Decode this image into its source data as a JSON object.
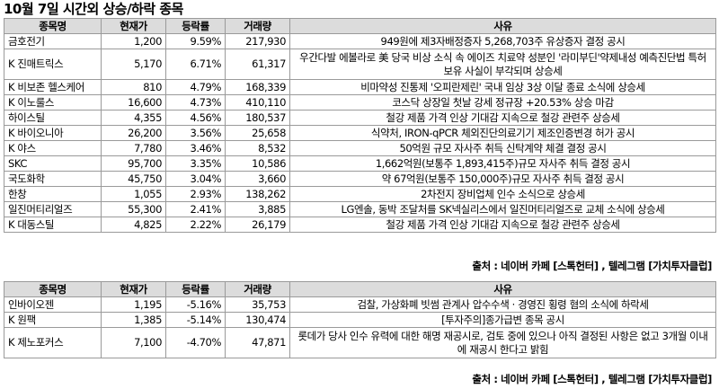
{
  "title": "10월 7일  시간외 상승/하락 종목",
  "headers": {
    "name": "종목명",
    "price": "현재가",
    "rate": "등락률",
    "volume": "거래량",
    "reason": "사유"
  },
  "rising": [
    {
      "name": "금호전기",
      "price": "1,200",
      "rate": "9.59%",
      "volume": "217,930",
      "reason": "949원에 제3자배정증자 5,268,703주 유상증자 결정 공시"
    },
    {
      "name": "K 진매트릭스",
      "price": "5,170",
      "rate": "6.71%",
      "volume": "61,317",
      "reason": "우간다발 에볼라로 美 당국 비상 소식 속 에이즈 치료약 성분인 '라미부딘'약제내성 예측진단법 특허 보유 사실이 부각되며 상승세"
    },
    {
      "name": "K 비보존 헬스케어",
      "price": "810",
      "rate": "4.79%",
      "volume": "168,339",
      "reason": "비마약성 진통제 '오피란제린' 국내 임상 3상 이달 종료 소식에 상승세"
    },
    {
      "name": "K 이노룰스",
      "price": "16,600",
      "rate": "4.73%",
      "volume": "410,110",
      "reason": "코스닥 상장일 첫날 강세 정규장 +20.53% 상승 마감"
    },
    {
      "name": "하이스틸",
      "price": "4,355",
      "rate": "4.56%",
      "volume": "180,537",
      "reason": "철강 제품 가격 인상 기대감 지속으로 철강 관련주 상승세"
    },
    {
      "name": "K 바이오니아",
      "price": "26,200",
      "rate": "3.56%",
      "volume": "25,658",
      "reason": "식약처, IRON-qPCR 체외진단의료기기 제조인증변경 허가 공시"
    },
    {
      "name": "K 야스",
      "price": "7,780",
      "rate": "3.46%",
      "volume": "8,532",
      "reason": "50억원 규모 자사주 취득 신탁계약 체결 결정 공시"
    },
    {
      "name": "SKC",
      "price": "95,700",
      "rate": "3.35%",
      "volume": "10,586",
      "reason": "1,662억원(보통주 1,893,415주)규모 자사주 취득 결정 공시"
    },
    {
      "name": "국도화학",
      "price": "45,750",
      "rate": "3.04%",
      "volume": "3,660",
      "reason": "약 67억원(보통주 150,000주)규모 자사주 취득 결정 공시"
    },
    {
      "name": "한창",
      "price": "1,055",
      "rate": "2.93%",
      "volume": "138,262",
      "reason": "2차전지 장비업체 인수 소식으로 상승세"
    },
    {
      "name": "일진머티리얼즈",
      "price": "55,300",
      "rate": "2.41%",
      "volume": "3,885",
      "reason": "LG엔솔, 동박 조달처를 SK넥실리스에서 일진머티리얼즈로 교체 소식에 상승세"
    },
    {
      "name": "K 대동스틸",
      "price": "4,825",
      "rate": "2.22%",
      "volume": "26,179",
      "reason": "철강 제품 가격 인상 기대감 지속으로 철강 관련주 상승세"
    }
  ],
  "falling": [
    {
      "name": "인바이오젠",
      "price": "1,195",
      "rate": "-5.16%",
      "volume": "35,753",
      "reason": "검찰, 가상화폐 빗썸 관계사 압수수색 · 경영진 횡령 혐의 소식에 하락세"
    },
    {
      "name": "K 원팩",
      "price": "1,385",
      "rate": "-5.14%",
      "volume": "130,474",
      "reason": "[투자주의]종가급변 종목 공시"
    },
    {
      "name": "K 제노포커스",
      "price": "7,100",
      "rate": "-4.70%",
      "volume": "47,871",
      "reason": "롯데가 당사 인수 유력에 대한 해명 재공시로, 검토 중에 있으나 아직 결정된 사항은 없고 3개월 이내에 재공시 한다고 밝힘"
    }
  ],
  "source": "출처 : 네이버 카페 [스톡헌터] , 텔레그램 [가치투자클럽]"
}
